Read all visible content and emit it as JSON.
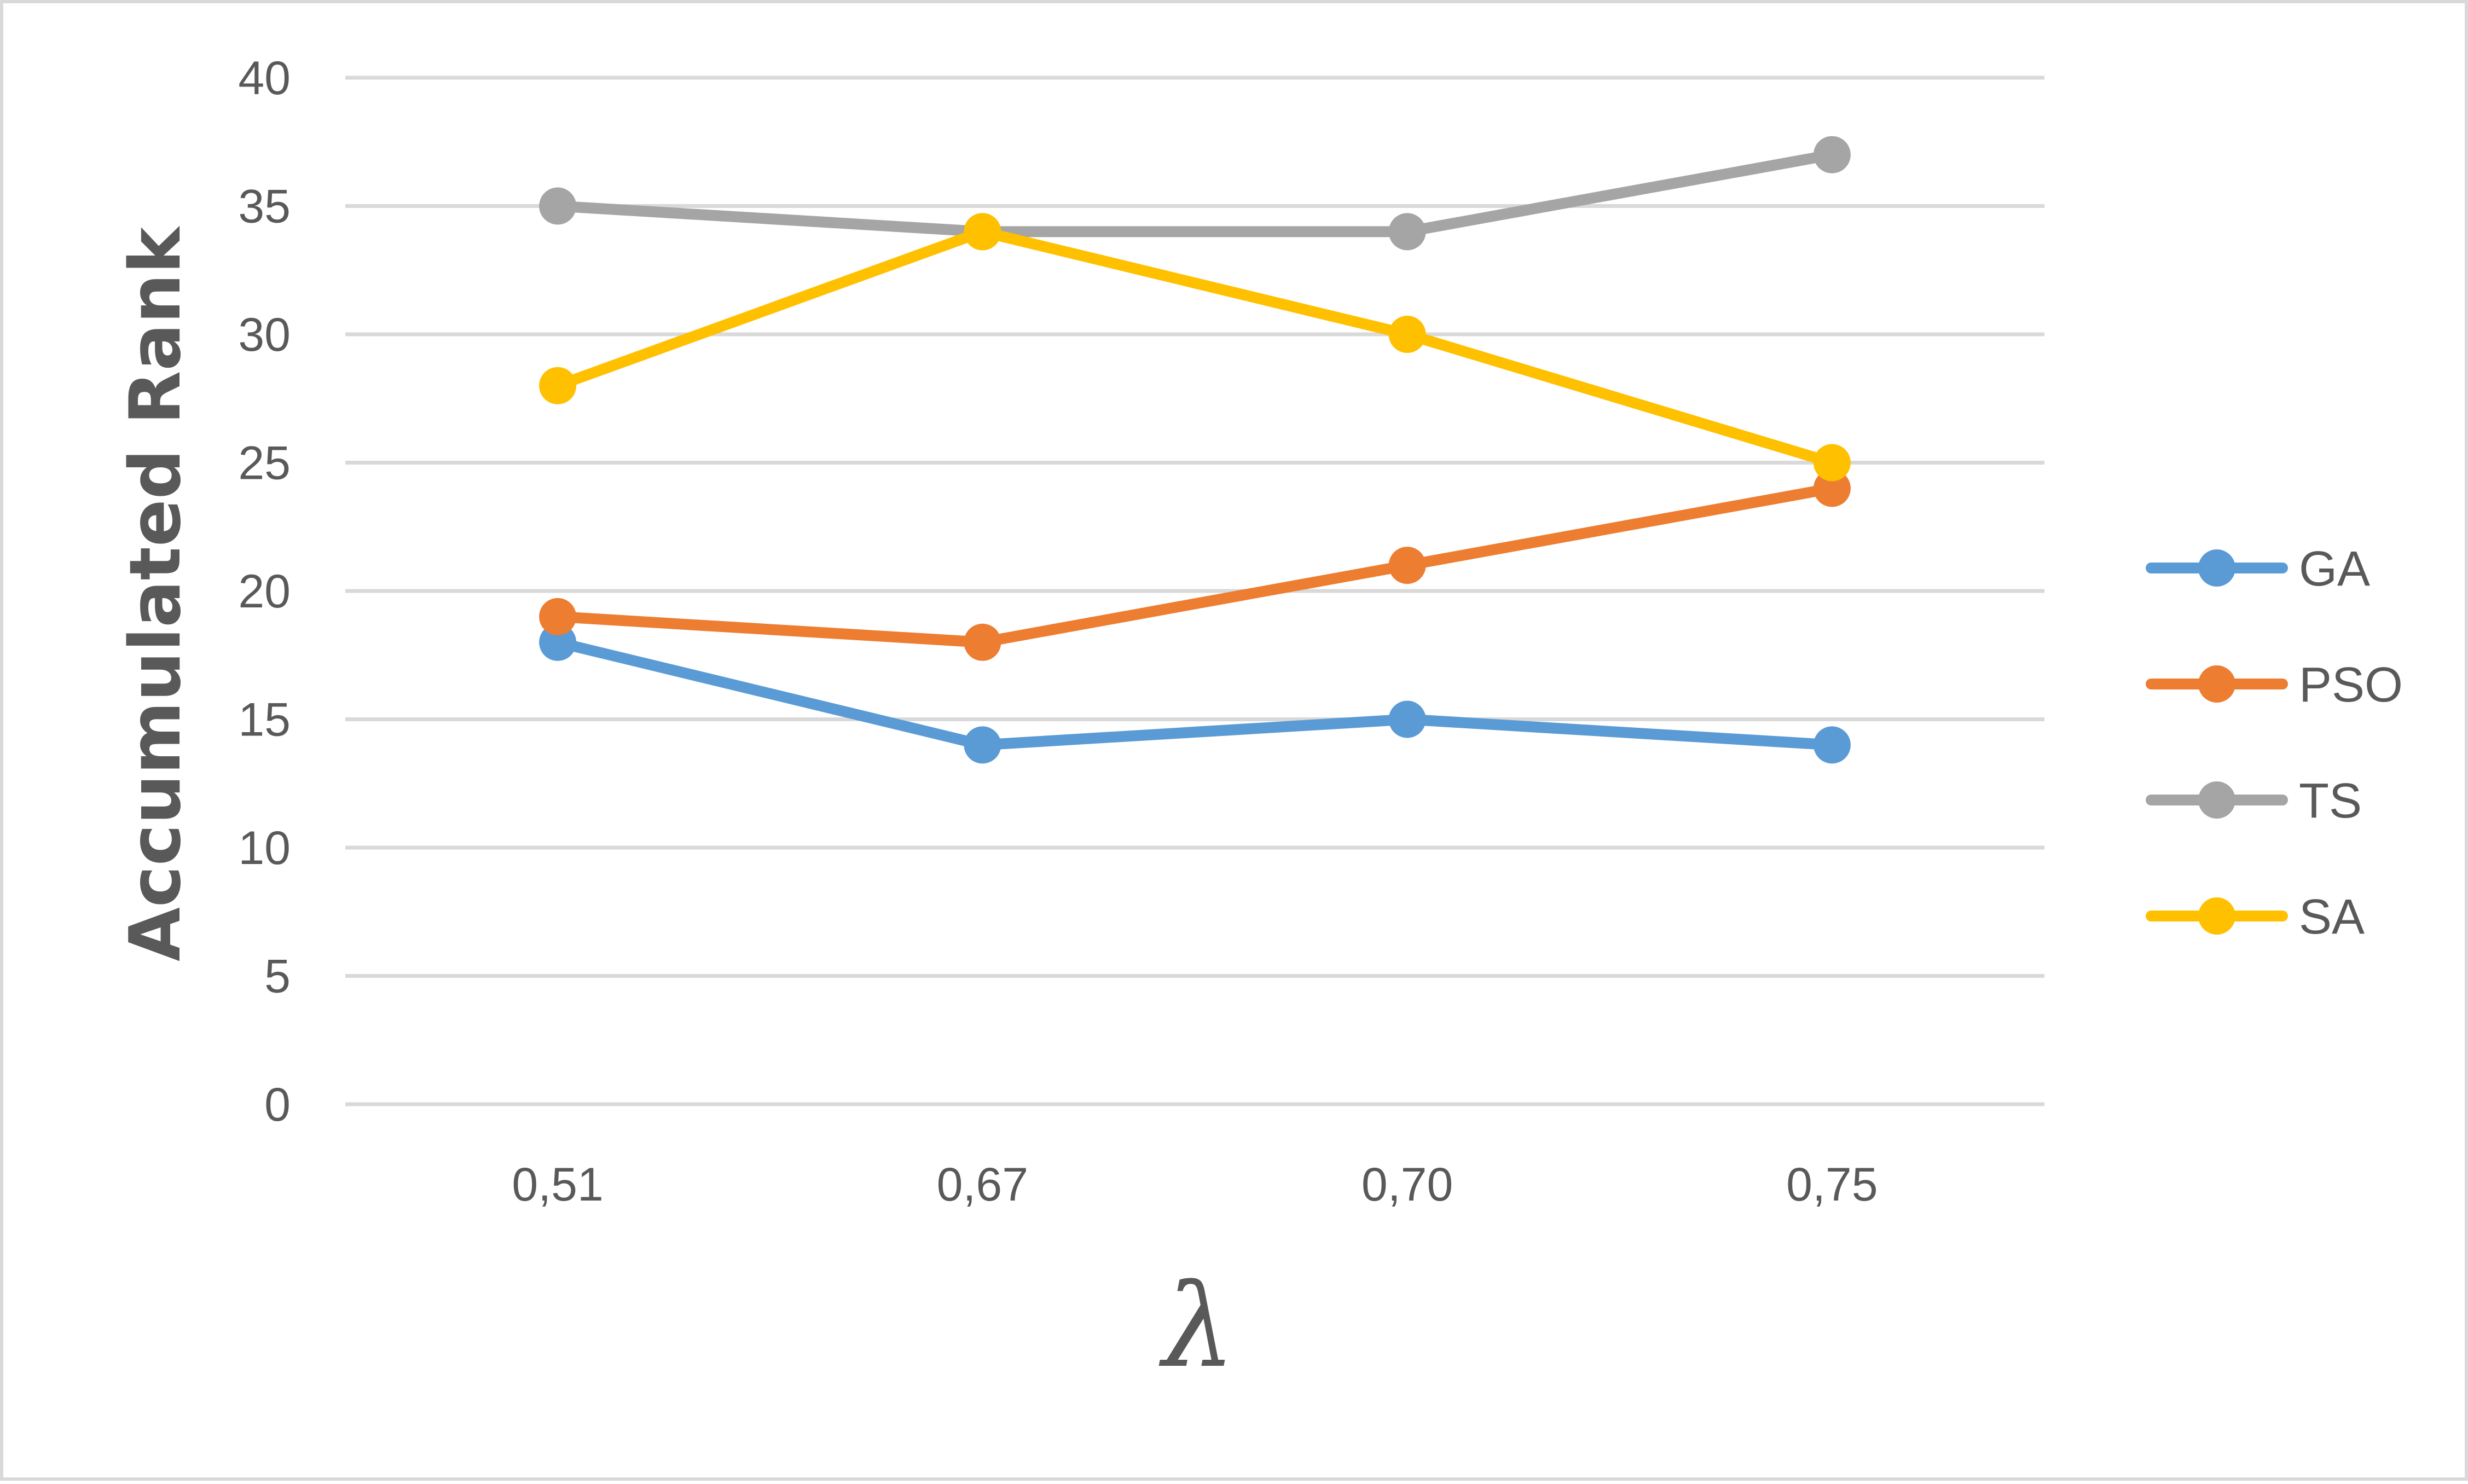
{
  "chart_data": {
    "type": "line",
    "title": "",
    "xlabel": "λ",
    "ylabel": "Accumulated Rank",
    "categories": [
      "0,51",
      "0,67",
      "0,70",
      "0,75"
    ],
    "ylim": [
      0,
      40
    ],
    "yticks": [
      0,
      5,
      10,
      15,
      20,
      25,
      30,
      35,
      40
    ],
    "grid": true,
    "legend_position": "right",
    "series": [
      {
        "name": "GA",
        "color": "#5b9bd5",
        "values": [
          18,
          14,
          15,
          14
        ]
      },
      {
        "name": "PSO",
        "color": "#ed7d31",
        "values": [
          19,
          18,
          21,
          24
        ]
      },
      {
        "name": "TS",
        "color": "#a5a5a5",
        "values": [
          35,
          34,
          34,
          37
        ]
      },
      {
        "name": "SA",
        "color": "#ffc000",
        "values": [
          28,
          34,
          30,
          25
        ]
      }
    ]
  }
}
